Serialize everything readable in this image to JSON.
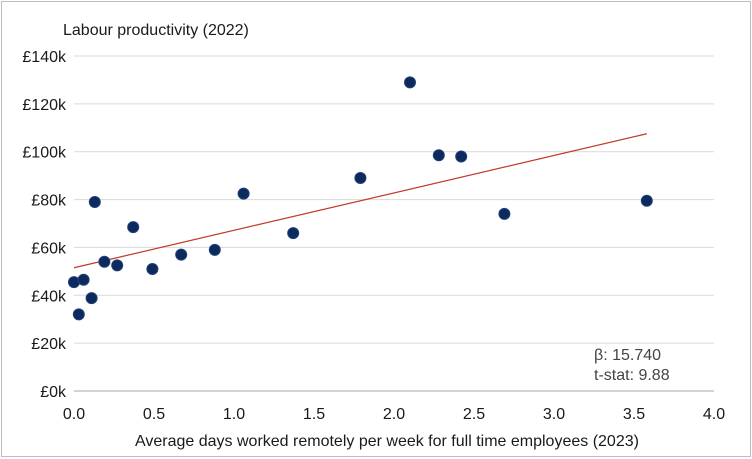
{
  "chart_data": {
    "type": "scatter",
    "ylabel": "Labour productivity (2022)",
    "xlabel": "Average days worked remotely per week for full time employees (2023)",
    "xlim": [
      0,
      4
    ],
    "ylim": [
      0,
      140
    ],
    "x_ticks": [
      "0.0",
      "0.5",
      "1.0",
      "1.5",
      "2.0",
      "2.5",
      "3.0",
      "3.5",
      "4.0"
    ],
    "y_ticks": [
      "£0k",
      "£20k",
      "£40k",
      "£60k",
      "£80k",
      "£100k",
      "£120k",
      "£140k"
    ],
    "grid": "horizontal",
    "points": [
      {
        "x": 0.0,
        "y": 45.5
      },
      {
        "x": 0.03,
        "y": 32
      },
      {
        "x": 0.06,
        "y": 46.5
      },
      {
        "x": 0.11,
        "y": 38.8
      },
      {
        "x": 0.13,
        "y": 79
      },
      {
        "x": 0.19,
        "y": 54
      },
      {
        "x": 0.27,
        "y": 52.5
      },
      {
        "x": 0.37,
        "y": 68.5
      },
      {
        "x": 0.49,
        "y": 51
      },
      {
        "x": 0.67,
        "y": 57
      },
      {
        "x": 0.88,
        "y": 59
      },
      {
        "x": 1.06,
        "y": 82.5
      },
      {
        "x": 1.37,
        "y": 66
      },
      {
        "x": 1.79,
        "y": 89
      },
      {
        "x": 2.1,
        "y": 129
      },
      {
        "x": 2.28,
        "y": 98.5
      },
      {
        "x": 2.42,
        "y": 98
      },
      {
        "x": 2.69,
        "y": 74
      },
      {
        "x": 3.58,
        "y": 79.5
      }
    ],
    "trendline": {
      "x": [
        0,
        3.58
      ],
      "y": [
        51.5,
        107.5
      ]
    },
    "annotations": [
      "β: 15.740",
      "t-stat: 9.88"
    ],
    "colors": {
      "points": "#0d2a5c",
      "trendline": "#c0392b",
      "grid": "#d9d9d9"
    }
  }
}
